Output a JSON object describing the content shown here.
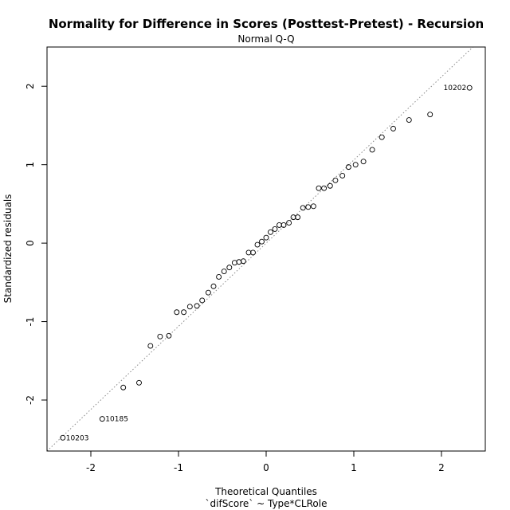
{
  "chart_data": {
    "type": "scatter",
    "title": "Normality for Difference in Scores (Posttest-Pretest) - Recursion",
    "subtitle": "Normal Q-Q",
    "xlabel": "Theoretical Quantiles",
    "xlabel2": "`difScore` ~ Type*CLRole",
    "ylabel": "Standardized residuals",
    "xlim": [
      -2.5,
      2.5
    ],
    "ylim": [
      -2.65,
      2.5
    ],
    "xticks": [
      -2,
      -1,
      0,
      1,
      2
    ],
    "yticks": [
      -2,
      -1,
      0,
      1,
      2
    ],
    "reference_line": {
      "intercept": 0.0,
      "slope": 1.06,
      "style": "dotted"
    },
    "x": [
      -2.32,
      -1.87,
      -1.63,
      -1.45,
      -1.32,
      -1.21,
      -1.11,
      -1.02,
      -0.94,
      -0.87,
      -0.79,
      -0.73,
      -0.66,
      -0.6,
      -0.54,
      -0.48,
      -0.42,
      -0.36,
      -0.31,
      -0.26,
      -0.2,
      -0.15,
      -0.1,
      -0.05,
      0.0,
      0.05,
      0.1,
      0.15,
      0.2,
      0.26,
      0.31,
      0.36,
      0.42,
      0.48,
      0.54,
      0.6,
      0.66,
      0.73,
      0.79,
      0.87,
      0.94,
      1.02,
      1.11,
      1.21,
      1.32,
      1.45,
      1.63,
      1.87,
      2.32
    ],
    "y": [
      -2.48,
      -2.24,
      -1.84,
      -1.78,
      -1.31,
      -1.19,
      -1.18,
      -0.88,
      -0.88,
      -0.81,
      -0.8,
      -0.73,
      -0.63,
      -0.55,
      -0.43,
      -0.36,
      -0.31,
      -0.25,
      -0.24,
      -0.23,
      -0.12,
      -0.12,
      -0.02,
      0.02,
      0.07,
      0.14,
      0.18,
      0.23,
      0.23,
      0.26,
      0.33,
      0.33,
      0.45,
      0.46,
      0.47,
      0.7,
      0.7,
      0.73,
      0.8,
      0.86,
      0.97,
      1.0,
      1.04,
      1.19,
      1.35,
      1.46,
      1.57,
      1.64,
      1.98
    ],
    "point_labels": [
      {
        "index": 0,
        "label": "10203",
        "side": "right"
      },
      {
        "index": 1,
        "label": "10185",
        "side": "right"
      },
      {
        "index": 48,
        "label": "10202",
        "side": "left"
      }
    ],
    "grid": false,
    "legend": "none"
  }
}
